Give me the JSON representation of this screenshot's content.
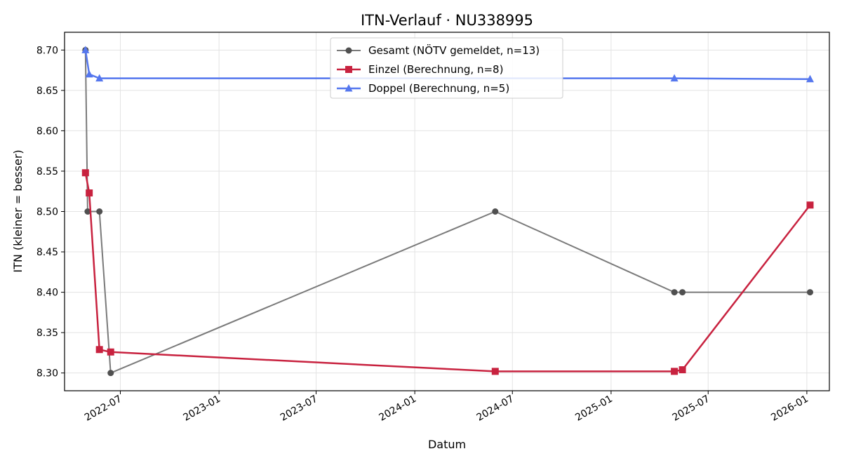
{
  "chart_data": {
    "type": "line",
    "title": "ITN-Verlauf · NU338995",
    "xlabel": "Datum",
    "ylabel": "ITN  (kleiner = besser)",
    "xlim": [
      "2022-03-19",
      "2026-02-12"
    ],
    "ylim": [
      8.278,
      8.722
    ],
    "x_ticks": [
      "2022-07",
      "2023-01",
      "2023-07",
      "2024-01",
      "2024-07",
      "2025-01",
      "2025-07",
      "2026-01"
    ],
    "y_ticks": [
      "8.30",
      "8.35",
      "8.40",
      "8.45",
      "8.50",
      "8.55",
      "8.60",
      "8.65",
      "8.70"
    ],
    "grid": true,
    "legend_position": "top-center",
    "series": [
      {
        "name": "Gesamt (NÖTV gemeldet, n=13)",
        "color": "#7a7a7a",
        "marker_color": "#505050",
        "marker": "circle",
        "points": [
          [
            "2022-04-27",
            8.7
          ],
          [
            "2022-05-01",
            8.5
          ],
          [
            "2022-05-23",
            8.5
          ],
          [
            "2022-06-13",
            8.3
          ],
          [
            "2024-05-30",
            8.5
          ],
          [
            "2025-04-29",
            8.4
          ],
          [
            "2025-05-14",
            8.4
          ],
          [
            "2026-01-07",
            8.4
          ]
        ]
      },
      {
        "name": "Einzel (Berechnung, n=8)",
        "color": "#c8223f",
        "marker": "square",
        "points": [
          [
            "2022-04-27",
            8.548
          ],
          [
            "2022-05-04",
            8.523
          ],
          [
            "2022-05-23",
            8.329
          ],
          [
            "2022-06-13",
            8.326
          ],
          [
            "2024-05-30",
            8.302
          ],
          [
            "2025-04-29",
            8.302
          ],
          [
            "2025-05-14",
            8.304
          ],
          [
            "2026-01-07",
            8.508
          ]
        ]
      },
      {
        "name": "Doppel (Berechnung, n=5)",
        "color": "#5577ee",
        "marker": "triangle",
        "points": [
          [
            "2022-04-27",
            8.7
          ],
          [
            "2022-05-04",
            8.67
          ],
          [
            "2022-05-23",
            8.665
          ],
          [
            "2025-04-29",
            8.665
          ],
          [
            "2026-01-07",
            8.664
          ]
        ]
      }
    ]
  }
}
